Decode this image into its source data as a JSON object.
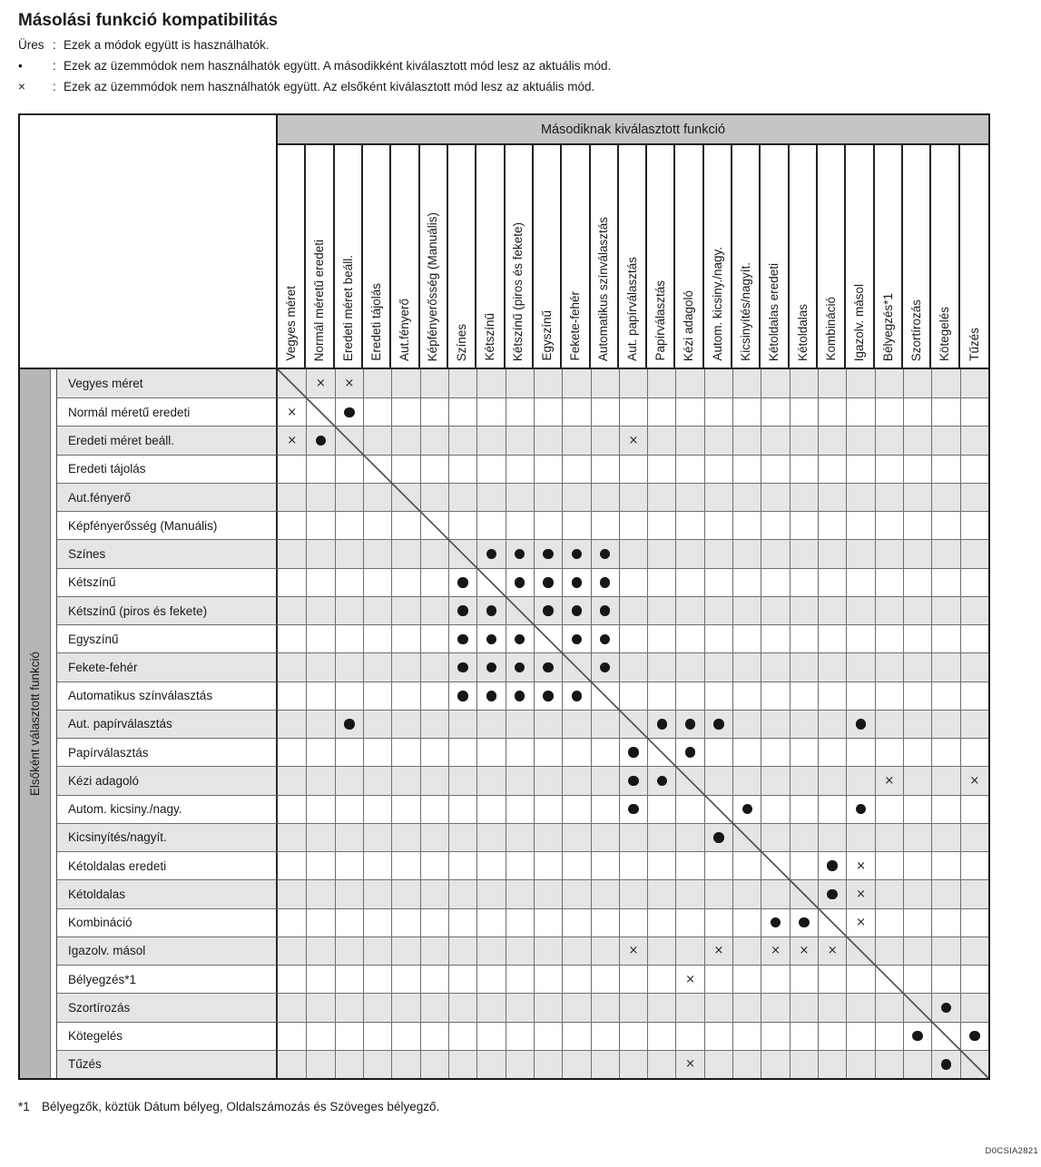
{
  "page": {
    "title": "Másolási funkció kompatibilitás",
    "legend": [
      {
        "symbol": "Üres",
        "text": "Ezek a módok együtt is használhatók."
      },
      {
        "symbol": "•",
        "text": "Ezek az üzemmódok nem használhatók együtt. A másodikként kiválasztott mód lesz az aktuális mód."
      },
      {
        "symbol": "×",
        "text": "Ezek az üzemmódok nem használhatók együtt. Az elsőként kiválasztott mód lesz az aktuális mód."
      }
    ],
    "footnote": {
      "marker": "*1",
      "text": "Bélyegzők, köztük Dátum bélyeg, Oldalszámozás és Szöveges bélyegző."
    },
    "figure_code": "D0CSIA2821"
  },
  "table": {
    "column_axis_title": "Másodiknak kiválasztott funkció",
    "row_axis_title": "Elsőként választott funkció",
    "x_symbol": "×",
    "functions": [
      "Vegyes méret",
      "Normál méretű eredeti",
      "Eredeti méret beáll.",
      "Eredeti tájolás",
      "Aut.fényerő",
      "Képfényerősség (Manuális)",
      "Színes",
      "Kétszínű",
      "Kétszínű (piros és fekete)",
      "Egyszínű",
      "Fekete-fehér",
      "Automatikus színválasztás",
      "Aut. papírválasztás",
      "Papírválasztás",
      "Kézi adagoló",
      "Autom. kicsiny./nagy.",
      "Kicsinyítés/nagyít.",
      "Kétoldalas eredeti",
      "Kétoldalas",
      "Kombináció",
      "Igazolv. másol",
      "Bélyegzés*1",
      "Szortírozás",
      "Kötegelés",
      "Tűzés"
    ],
    "marks": {
      "dot": [
        [
          2,
          3
        ],
        [
          3,
          2
        ],
        [
          7,
          8
        ],
        [
          7,
          9
        ],
        [
          7,
          10
        ],
        [
          7,
          11
        ],
        [
          7,
          12
        ],
        [
          8,
          7
        ],
        [
          8,
          9
        ],
        [
          8,
          10
        ],
        [
          8,
          11
        ],
        [
          8,
          12
        ],
        [
          9,
          7
        ],
        [
          9,
          8
        ],
        [
          9,
          10
        ],
        [
          9,
          11
        ],
        [
          9,
          12
        ],
        [
          10,
          7
        ],
        [
          10,
          8
        ],
        [
          10,
          9
        ],
        [
          10,
          11
        ],
        [
          10,
          12
        ],
        [
          11,
          7
        ],
        [
          11,
          8
        ],
        [
          11,
          9
        ],
        [
          11,
          10
        ],
        [
          11,
          12
        ],
        [
          12,
          7
        ],
        [
          12,
          8
        ],
        [
          12,
          9
        ],
        [
          12,
          10
        ],
        [
          12,
          11
        ],
        [
          13,
          3
        ],
        [
          13,
          14
        ],
        [
          13,
          15
        ],
        [
          13,
          16
        ],
        [
          13,
          21
        ],
        [
          14,
          13
        ],
        [
          14,
          15
        ],
        [
          15,
          13
        ],
        [
          15,
          14
        ],
        [
          16,
          13
        ],
        [
          16,
          17
        ],
        [
          16,
          21
        ],
        [
          17,
          16
        ],
        [
          18,
          20
        ],
        [
          19,
          20
        ],
        [
          20,
          18
        ],
        [
          20,
          19
        ],
        [
          23,
          24
        ],
        [
          24,
          23
        ],
        [
          24,
          25
        ],
        [
          25,
          24
        ]
      ],
      "x": [
        [
          1,
          2
        ],
        [
          1,
          3
        ],
        [
          2,
          1
        ],
        [
          3,
          1
        ],
        [
          3,
          13
        ],
        [
          15,
          22
        ],
        [
          15,
          25
        ],
        [
          18,
          21
        ],
        [
          19,
          21
        ],
        [
          20,
          21
        ],
        [
          21,
          13
        ],
        [
          21,
          16
        ],
        [
          21,
          18
        ],
        [
          21,
          19
        ],
        [
          21,
          20
        ],
        [
          22,
          15
        ],
        [
          25,
          15
        ]
      ]
    },
    "colors": {
      "header_band": "#c4c6c5",
      "sidebar": "#b4b7b5",
      "row_shade": "#e4e6e5",
      "grid_line": "#6e6e6e",
      "heavy_line": "#1a1a1a",
      "diagonal_line": "#4f4f4f"
    }
  }
}
